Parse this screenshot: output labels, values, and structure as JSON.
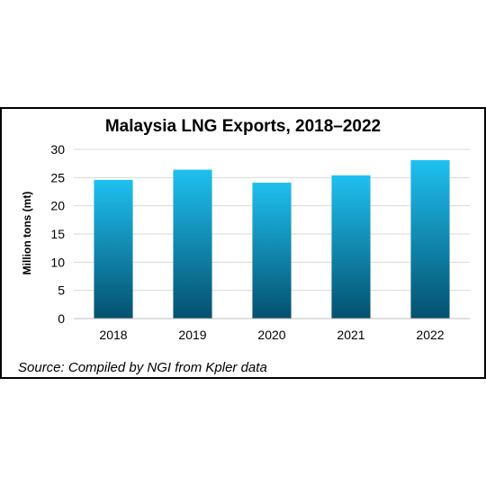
{
  "chart_data": {
    "type": "bar",
    "title": "Malaysia LNG Exports, 2018–2022",
    "xlabel": "",
    "ylabel": "Million tons (mt)",
    "categories": [
      "2018",
      "2019",
      "2020",
      "2021",
      "2022"
    ],
    "values": [
      24.6,
      26.4,
      24.1,
      25.4,
      28.1
    ],
    "ylim": [
      0,
      30
    ],
    "yticks": [
      0,
      5,
      10,
      15,
      20,
      25,
      30
    ],
    "grid": true,
    "legend": "none",
    "bar_gradient": {
      "top": "#1fc0f0",
      "bottom": "#04506e"
    },
    "source": "Source: Compiled by NGI from Kpler data"
  }
}
